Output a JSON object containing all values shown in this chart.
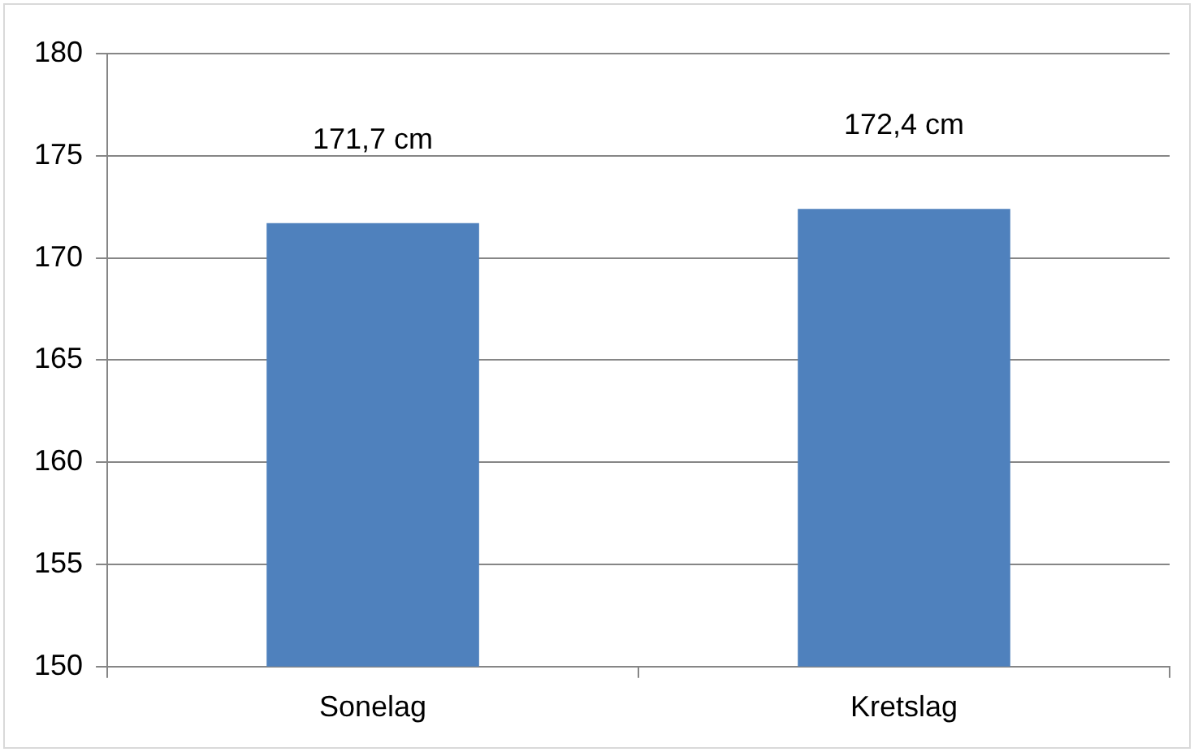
{
  "chart_data": {
    "type": "bar",
    "categories": [
      "Sonelag",
      "Kretslag"
    ],
    "values": [
      171.7,
      172.4
    ],
    "color": "#4f81bd",
    "value_labels": [
      "171,7 cm",
      "172,4 cm"
    ],
    "ylim": [
      150,
      180
    ],
    "yticks": [
      150,
      155,
      160,
      165,
      170,
      175,
      180
    ],
    "grid": "y"
  }
}
